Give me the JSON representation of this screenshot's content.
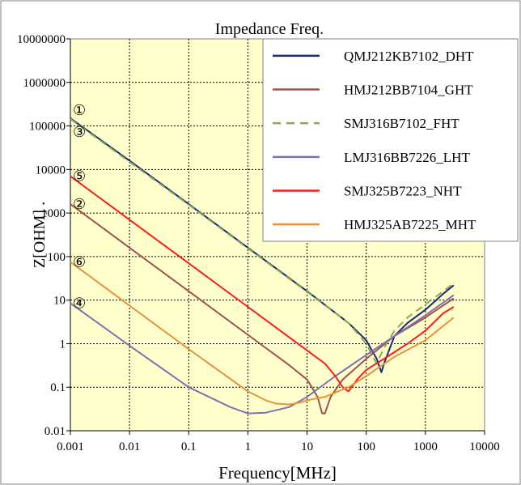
{
  "chart_data": {
    "type": "line",
    "title": "Impedance Freq.",
    "xlabel": "Frequency[MHz]",
    "ylabel": "Z[OHM] .",
    "x_scale": "log",
    "y_scale": "log",
    "xlim": [
      0.001,
      10000
    ],
    "ylim": [
      0.01,
      10000000
    ],
    "x_ticks": [
      "0.001",
      "0.01",
      "0.1",
      "1",
      "10",
      "100",
      "1000",
      "10000"
    ],
    "y_ticks": [
      "0.01",
      "0.1",
      "1",
      "10",
      "100",
      "1000",
      "10000",
      "100000",
      "1000000",
      "10000000"
    ],
    "grid": true,
    "plot_background": "#ffffcc",
    "legend_position": "top-right",
    "series": [
      {
        "name": "QMJ212KB7102_DHT",
        "color": "#1a2a7a",
        "dash": "solid",
        "marker": "①",
        "x": [
          0.001,
          0.01,
          0.1,
          1,
          10,
          50,
          100,
          150,
          180,
          200,
          300,
          500,
          1000,
          2000,
          3000
        ],
        "y": [
          150000,
          16000,
          1600,
          160,
          16,
          3,
          1.2,
          0.45,
          0.22,
          0.35,
          1.5,
          3,
          6,
          14,
          22
        ]
      },
      {
        "name": "HMJ212BB7104_GHT",
        "color": "#a05050",
        "dash": "solid",
        "marker": "②",
        "x": [
          0.001,
          0.01,
          0.1,
          1,
          5,
          10,
          15,
          18,
          20,
          25,
          40,
          100,
          300,
          1000,
          3000
        ],
        "y": [
          1600,
          160,
          16,
          1.6,
          0.32,
          0.15,
          0.06,
          0.025,
          0.025,
          0.06,
          0.15,
          0.45,
          1.5,
          4,
          11
        ]
      },
      {
        "name": "SMJ316B7102_FHT",
        "color": "#88aa55",
        "dash": "dashed",
        "marker": "③",
        "x": [
          0.001,
          0.01,
          0.1,
          1,
          10,
          50,
          100,
          130,
          150,
          200,
          300,
          500,
          1000,
          2000,
          3000
        ],
        "y": [
          145000,
          15000,
          1550,
          155,
          15.5,
          3,
          1,
          0.5,
          0.35,
          0.8,
          2,
          4,
          8,
          16,
          24
        ]
      },
      {
        "name": "LMJ316BB7226_LHT",
        "color": "#8070b0",
        "dash": "solid",
        "marker": "④",
        "x": [
          0.001,
          0.01,
          0.1,
          0.5,
          1,
          2,
          5,
          10,
          30,
          100,
          300,
          1000,
          3000
        ],
        "y": [
          8.5,
          0.9,
          0.1,
          0.035,
          0.025,
          0.026,
          0.035,
          0.06,
          0.18,
          0.55,
          1.5,
          4.5,
          13
        ]
      },
      {
        "name": "SMJ325B7223_NHT",
        "color": "#ff1a1a",
        "dash": "solid",
        "marker": "⑤",
        "x": [
          0.001,
          0.01,
          0.1,
          1,
          10,
          20,
          30,
          40,
          50,
          70,
          100,
          200,
          500,
          1000,
          2000,
          3000
        ],
        "y": [
          7000,
          700,
          70,
          7,
          0.7,
          0.35,
          0.18,
          0.1,
          0.08,
          0.15,
          0.25,
          0.45,
          1,
          2,
          5,
          7
        ]
      },
      {
        "name": "HMJ325AB7225_MHT",
        "color": "#e8923c",
        "dash": "solid",
        "marker": "⑥",
        "x": [
          0.001,
          0.01,
          0.1,
          1,
          2,
          3,
          5,
          8,
          10,
          20,
          50,
          100,
          300,
          1000,
          3000
        ],
        "y": [
          75,
          7.5,
          0.75,
          0.08,
          0.05,
          0.042,
          0.04,
          0.045,
          0.05,
          0.06,
          0.1,
          0.18,
          0.5,
          1.2,
          4
        ]
      }
    ]
  }
}
